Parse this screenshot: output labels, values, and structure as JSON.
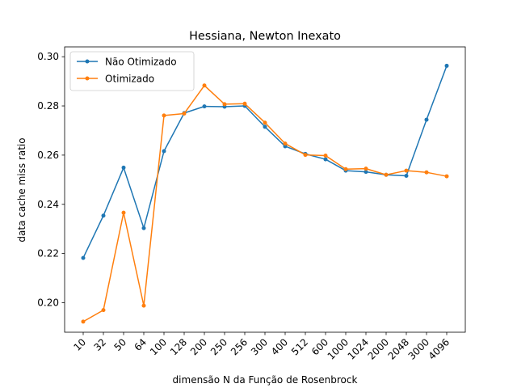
{
  "chart_data": {
    "type": "line",
    "title": "Hessiana, Newton Inexato",
    "xlabel": "dimensão N da Função de Rosenbrock",
    "ylabel": "data cache miss ratio",
    "categories": [
      "10",
      "32",
      "50",
      "64",
      "100",
      "128",
      "200",
      "250",
      "256",
      "300",
      "400",
      "512",
      "600",
      "1000",
      "1024",
      "2000",
      "2048",
      "3000",
      "4096"
    ],
    "ylim": [
      0.188,
      0.304
    ],
    "yticks": [
      "0.20",
      "0.22",
      "0.24",
      "0.26",
      "0.28",
      "0.30"
    ],
    "grid": false,
    "legend_position": "upper-left",
    "series": [
      {
        "name": "Não Otimizado",
        "color": "#1f77b4",
        "values": [
          0.2182,
          0.2354,
          0.2549,
          0.2303,
          0.2616,
          0.2771,
          0.2798,
          0.2797,
          0.28,
          0.2715,
          0.2636,
          0.2605,
          0.2583,
          0.2537,
          0.2532,
          0.252,
          0.2516,
          0.2744,
          0.2963
        ]
      },
      {
        "name": "Otimizado",
        "color": "#ff7f0e",
        "values": [
          0.1923,
          0.197,
          0.2366,
          0.1988,
          0.2761,
          0.2769,
          0.2883,
          0.2807,
          0.2809,
          0.2732,
          0.2647,
          0.2601,
          0.2598,
          0.2543,
          0.2545,
          0.252,
          0.2537,
          0.253,
          0.2514
        ]
      }
    ]
  }
}
